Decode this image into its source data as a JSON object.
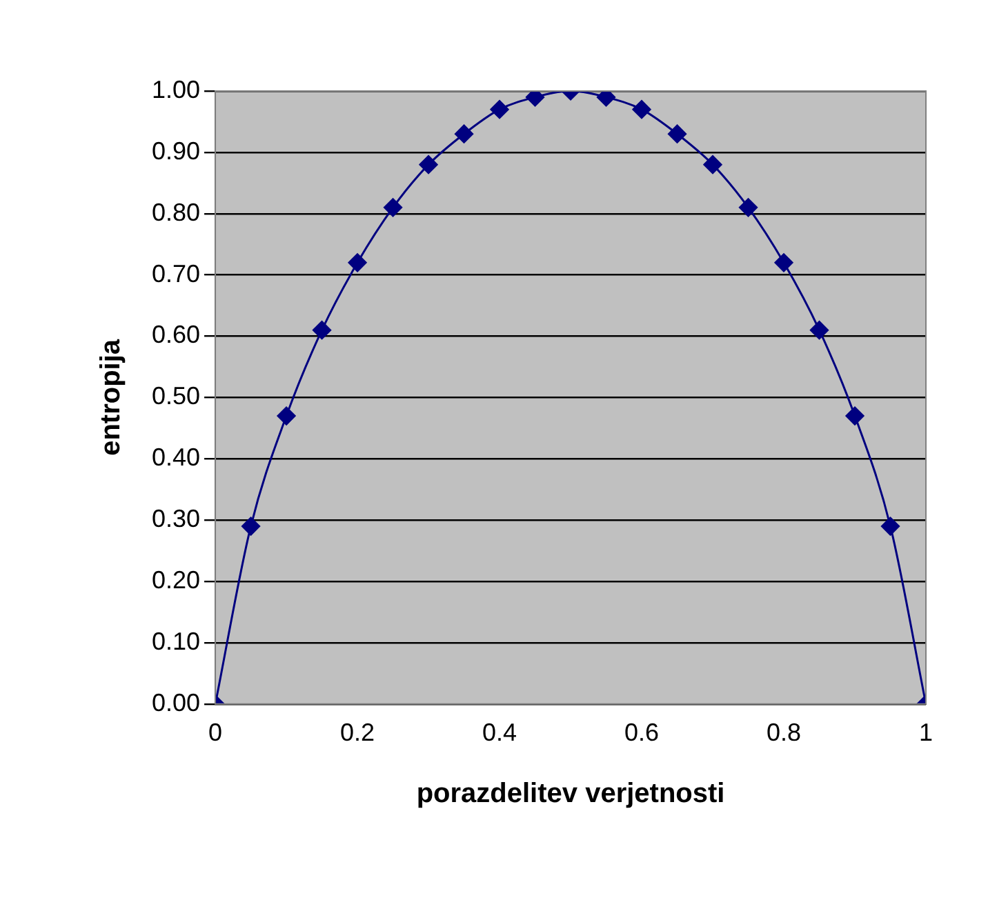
{
  "chart_data": {
    "type": "line",
    "xlabel": "porazdelitev verjetnosti",
    "ylabel": "entropija",
    "x": [
      0,
      0.05,
      0.1,
      0.15,
      0.2,
      0.25,
      0.3,
      0.35,
      0.4,
      0.45,
      0.5,
      0.55,
      0.6,
      0.65,
      0.7,
      0.75,
      0.8,
      0.85,
      0.9,
      0.95,
      1
    ],
    "series": [
      {
        "color": "#000080",
        "values": [
          0,
          0.29,
          0.47,
          0.61,
          0.72,
          0.81,
          0.88,
          0.93,
          0.97,
          0.99,
          1,
          0.99,
          0.97,
          0.93,
          0.88,
          0.81,
          0.72,
          0.61,
          0.47,
          0.29,
          0
        ]
      }
    ],
    "xlim": [
      0,
      1
    ],
    "xticks": [
      0,
      0.2,
      0.4,
      0.6,
      0.8,
      1
    ],
    "ylim": [
      0,
      1
    ],
    "yticks": [
      {
        "value": 0,
        "label": "0.00"
      },
      {
        "value": 0.1,
        "label": "0.10"
      },
      {
        "value": 0.2,
        "label": "0.20"
      },
      {
        "value": 0.3,
        "label": "0.30"
      },
      {
        "value": 0.4,
        "label": "0.40"
      },
      {
        "value": 0.5,
        "label": "0.50"
      },
      {
        "value": 0.6,
        "label": "0.60"
      },
      {
        "value": 0.7,
        "label": "0.70"
      },
      {
        "value": 0.8,
        "label": "0.80"
      },
      {
        "value": 0.9,
        "label": "0.90"
      },
      {
        "value": 1,
        "label": "1.00"
      }
    ],
    "grid": "y",
    "legend": false,
    "marker": "diamond",
    "line_style": "solid"
  }
}
